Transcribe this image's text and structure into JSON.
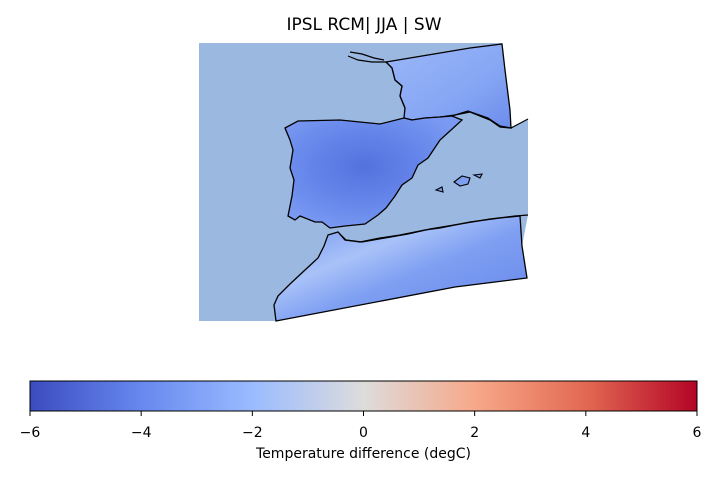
{
  "title": "IPSL RCM| JJA | SW",
  "colorbar": {
    "label": "Temperature difference (degC)",
    "colormap": "coolwarm",
    "min": -6,
    "max": 6,
    "ticks": [
      "−6",
      "−4",
      "−2",
      "0",
      "2",
      "4",
      "6"
    ],
    "colors": [
      "#3b4cc0",
      "#6788ee",
      "#9abbff",
      "#dddcdc",
      "#f7a889",
      "#e26952",
      "#b40426"
    ]
  },
  "map": {
    "sea_color": "#9ab8e0",
    "coastline_color": "#000000"
  }
}
